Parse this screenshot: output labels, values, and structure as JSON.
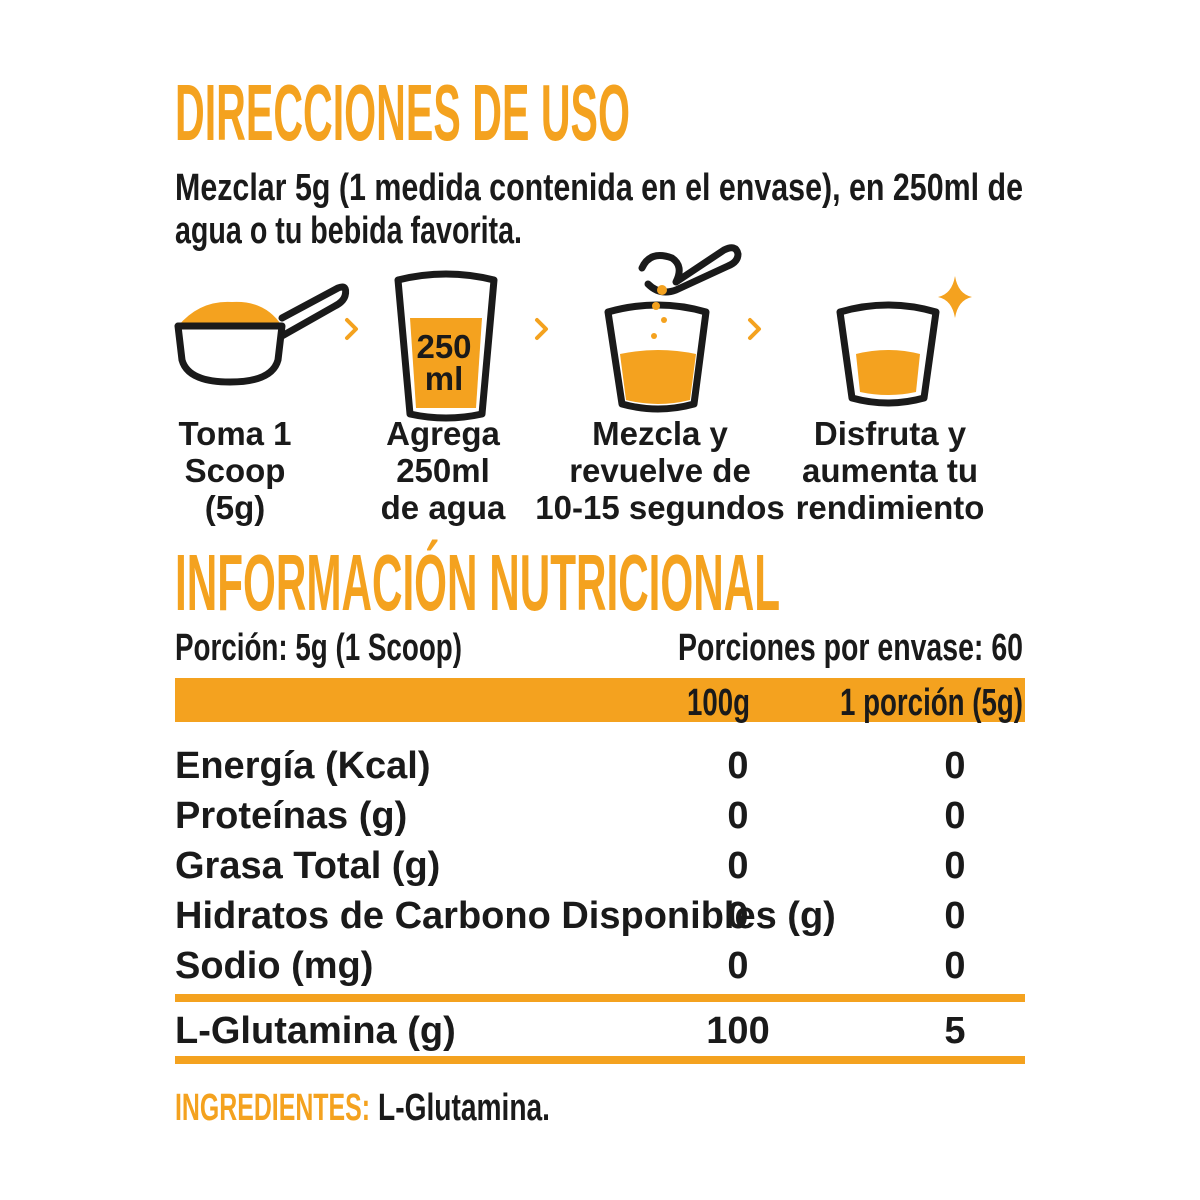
{
  "directions": {
    "title": "DIRECCIONES DE USO",
    "text": [
      "Mezclar 5g (1 medida contenida en el envase), en 250ml de",
      "agua o tu bebida favorita."
    ],
    "steps": [
      {
        "lines": [
          "Toma 1",
          "Scoop",
          "(5g)"
        ]
      },
      {
        "cup_label": [
          "250",
          "ml"
        ],
        "lines": [
          "Agrega",
          "250ml",
          "de agua"
        ]
      },
      {
        "lines": [
          "Mezcla y",
          "revuelve de",
          "10-15 segundos"
        ]
      },
      {
        "lines": [
          "Disfruta y",
          "aumenta tu",
          "rendimiento"
        ]
      }
    ]
  },
  "nutrition": {
    "title": "INFORMACIÓN NUTRICIONAL",
    "serving": "Porción: 5g (1 Scoop)",
    "servings_per_container": "Porciones por envase: 60",
    "columns": [
      "100g",
      "1 porción (5g)"
    ],
    "rows": [
      [
        "Energía (Kcal)",
        0,
        0
      ],
      [
        "Proteínas (g)",
        0,
        0
      ],
      [
        "Grasa Total (g)",
        0,
        0
      ],
      [
        "Hidratos de Carbono Disponibles (g)",
        0,
        0
      ],
      [
        "Sodio (mg)",
        0,
        0
      ]
    ],
    "highlight_row": [
      "L-Glutamina (g)",
      100,
      5
    ]
  },
  "ingredients": {
    "label": "INGREDIENTES:",
    "value": "L-Glutamina."
  }
}
